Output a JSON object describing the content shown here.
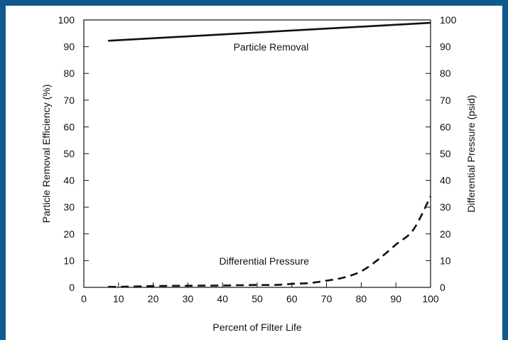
{
  "colors": {
    "frame": "#0e5a8e",
    "background": "#ffffff",
    "ink": "#111111"
  },
  "chart_data": {
    "type": "line",
    "xlabel": "Percent of Filter Life",
    "ylabel_left": "Particle Removal Efficiency (%)",
    "ylabel_right": "Differential Pressure (psid)",
    "xlim": [
      0,
      100
    ],
    "ylim_left": [
      0,
      100
    ],
    "ylim_right": [
      0,
      100
    ],
    "x_ticks": [
      "0",
      "10",
      "20",
      "30",
      "40",
      "50",
      "60",
      "70",
      "80",
      "90",
      "100"
    ],
    "y_ticks_left": [
      "0",
      "10",
      "20",
      "30",
      "40",
      "50",
      "60",
      "70",
      "80",
      "90",
      "100"
    ],
    "y_ticks_right": [
      "0",
      "10",
      "20",
      "30",
      "40",
      "50",
      "60",
      "70",
      "80",
      "90",
      "100"
    ],
    "grid": false,
    "series": [
      {
        "name": "Particle Removal",
        "axis": "left",
        "style": "solid",
        "x": [
          7,
          100
        ],
        "y": [
          92.2,
          98.9
        ]
      },
      {
        "name": "Differential Pressure",
        "axis": "right",
        "style": "dashed",
        "x": [
          7,
          10,
          20,
          30,
          40,
          45,
          50,
          55,
          60,
          65,
          70,
          75,
          80,
          85,
          90,
          95,
          100
        ],
        "y": [
          0.2,
          0.2,
          0.5,
          0.6,
          0.7,
          0.8,
          0.9,
          0.9,
          1.3,
          1.6,
          2.5,
          3.7,
          6,
          10.5,
          16,
          21.5,
          34
        ]
      }
    ]
  }
}
